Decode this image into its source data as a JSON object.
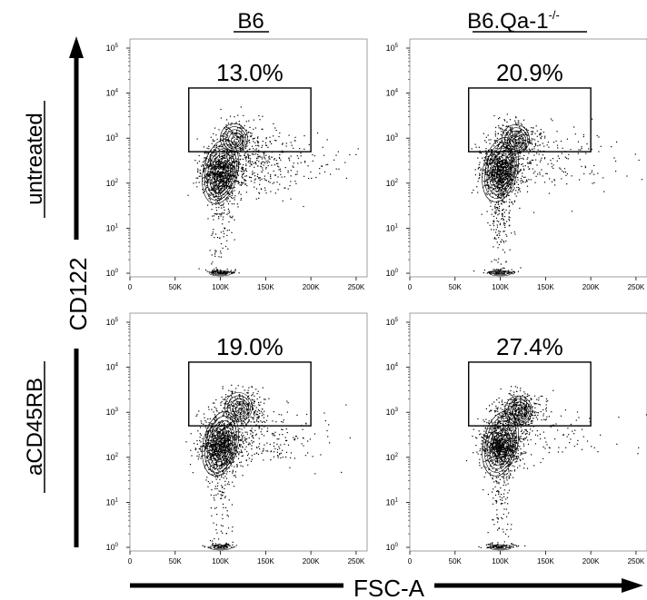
{
  "figure": {
    "columns": [
      {
        "label": "B6",
        "superscript": ""
      },
      {
        "label": "B6.Qa-1",
        "superscript": "-/-"
      }
    ],
    "rows": [
      {
        "label": "untreated"
      },
      {
        "label": "aCD45RB"
      }
    ],
    "y_axis_label": "CD122",
    "x_axis_label": "FSC-A",
    "x_ticks": [
      "0",
      "50K",
      "100K",
      "150K",
      "200K",
      "250K"
    ],
    "y_ticks": [
      {
        "base": "10",
        "exp": "0"
      },
      {
        "base": "10",
        "exp": "1"
      },
      {
        "base": "10",
        "exp": "2"
      },
      {
        "base": "10",
        "exp": "3"
      },
      {
        "base": "10",
        "exp": "4"
      },
      {
        "base": "10",
        "exp": "5"
      }
    ],
    "colors": {
      "ink": "#000000",
      "background": "#ffffff",
      "frame": "#888888"
    }
  },
  "chart_data": [
    {
      "type": "scatter",
      "subtype": "flow-cytometry-contour",
      "column": "B6",
      "row": "untreated",
      "xlabel": "FSC-A",
      "ylabel": "CD122",
      "xlim": [
        0,
        262144
      ],
      "ylim": [
        1,
        100000
      ],
      "yscale": "log",
      "gate": {
        "x": [
          65000,
          200000
        ],
        "y": [
          500,
          13000
        ],
        "percent": "13.0%"
      },
      "populations": [
        {
          "x": 100000,
          "y": 180,
          "role": "main"
        },
        {
          "x": 115000,
          "y": 1000,
          "role": "gated"
        }
      ]
    },
    {
      "type": "scatter",
      "subtype": "flow-cytometry-contour",
      "column": "B6.Qa-1-/-",
      "row": "untreated",
      "xlabel": "FSC-A",
      "ylabel": "CD122",
      "xlim": [
        0,
        262144
      ],
      "ylim": [
        1,
        100000
      ],
      "yscale": "log",
      "gate": {
        "x": [
          65000,
          200000
        ],
        "y": [
          500,
          13000
        ],
        "percent": "20.9%"
      },
      "populations": [
        {
          "x": 100000,
          "y": 200,
          "role": "main"
        },
        {
          "x": 117000,
          "y": 950,
          "role": "gated"
        }
      ]
    },
    {
      "type": "scatter",
      "subtype": "flow-cytometry-contour",
      "column": "B6",
      "row": "aCD45RB",
      "xlabel": "FSC-A",
      "ylabel": "CD122",
      "xlim": [
        0,
        262144
      ],
      "ylim": [
        1,
        100000
      ],
      "yscale": "log",
      "gate": {
        "x": [
          65000,
          200000
        ],
        "y": [
          500,
          13000
        ],
        "percent": "19.0%"
      },
      "populations": [
        {
          "x": 100000,
          "y": 200,
          "role": "main"
        },
        {
          "x": 120000,
          "y": 1300,
          "role": "gated"
        }
      ]
    },
    {
      "type": "scatter",
      "subtype": "flow-cytometry-contour",
      "column": "B6.Qa-1-/-",
      "row": "aCD45RB",
      "xlabel": "FSC-A",
      "ylabel": "CD122",
      "xlim": [
        0,
        262144
      ],
      "ylim": [
        1,
        100000
      ],
      "yscale": "log",
      "gate": {
        "x": [
          65000,
          200000
        ],
        "y": [
          500,
          13000
        ],
        "percent": "27.4%"
      },
      "populations": [
        {
          "x": 100000,
          "y": 200,
          "role": "main"
        },
        {
          "x": 120000,
          "y": 1100,
          "role": "gated"
        }
      ]
    }
  ]
}
